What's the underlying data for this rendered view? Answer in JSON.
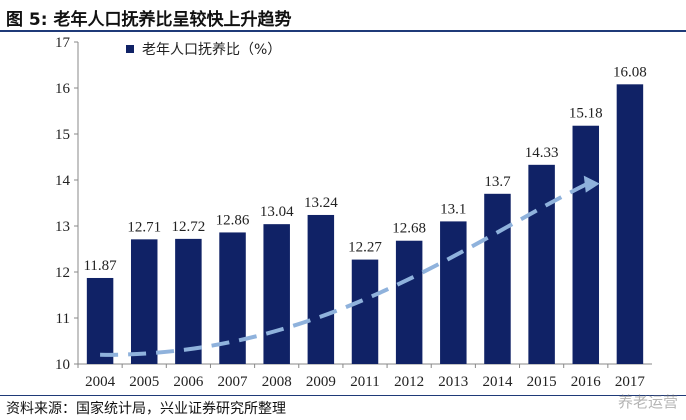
{
  "figure": {
    "label": "图 5:",
    "title": "老年人口抚养比呈较快上升趋势"
  },
  "source": "资料来源：国家统计局，兴业证券研究所整理",
  "watermark": "养老运营",
  "colors": {
    "bar": "#102266",
    "trend": "#8fb2dc",
    "rule": "#1f3a78",
    "axis": "#888888"
  },
  "chart_data": {
    "type": "bar",
    "title": "",
    "xlabel": "",
    "ylabel": "",
    "categories": [
      "2004",
      "2005",
      "2006",
      "2007",
      "2008",
      "2009",
      "2011",
      "2012",
      "2013",
      "2014",
      "2015",
      "2016",
      "2017"
    ],
    "series": [
      {
        "name": "老年人口抚养比（%）",
        "values": [
          11.87,
          12.71,
          12.72,
          12.86,
          13.04,
          13.24,
          12.27,
          12.68,
          13.1,
          13.7,
          14.33,
          15.18,
          16.08
        ]
      }
    ],
    "data_labels": [
      "11.87",
      "12.71",
      "12.72",
      "12.86",
      "13.04",
      "13.24",
      "12.27",
      "12.68",
      "13.1",
      "13.7",
      "14.33",
      "15.18",
      "16.08"
    ],
    "ylim": [
      10,
      17
    ],
    "yticks": [
      10,
      11,
      12,
      13,
      14,
      15,
      16,
      17
    ],
    "grid": false,
    "legend": "top-left",
    "trendline": {
      "style": "dashed",
      "arrow": true,
      "from": 10.2,
      "to": 13.9
    }
  }
}
